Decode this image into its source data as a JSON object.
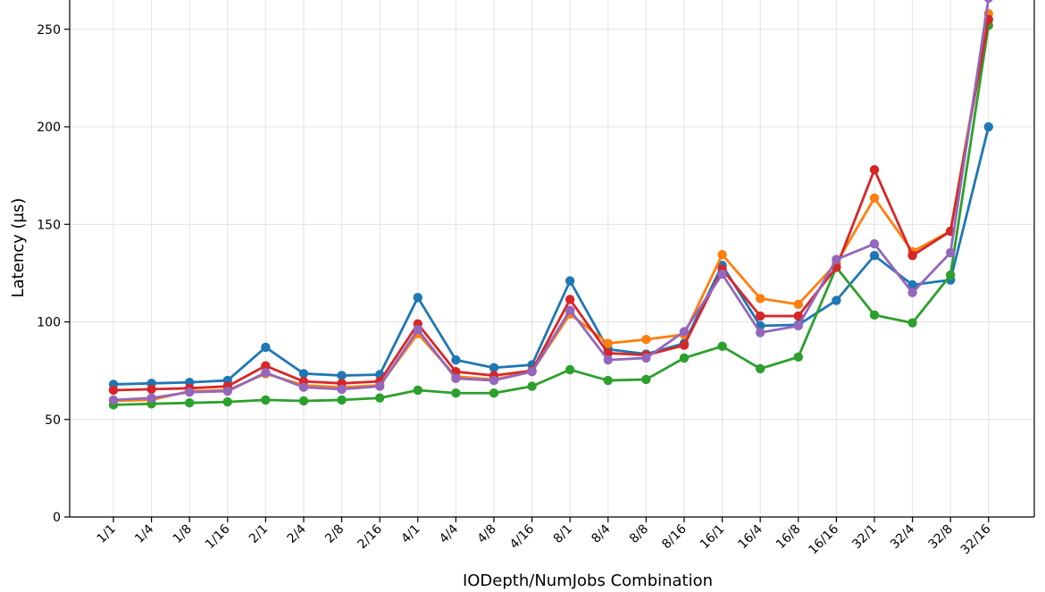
{
  "chart_data": {
    "type": "line",
    "title": "",
    "xlabel": "IODepth/NumJobs Combination",
    "ylabel": "Latency (µs)",
    "categories": [
      "1/1",
      "1/4",
      "1/8",
      "1/16",
      "2/1",
      "2/4",
      "2/8",
      "2/16",
      "4/1",
      "4/4",
      "4/8",
      "4/16",
      "8/1",
      "8/4",
      "8/8",
      "8/16",
      "16/1",
      "16/4",
      "16/8",
      "16/16",
      "32/1",
      "32/4",
      "32/8",
      "32/16"
    ],
    "yticks": [
      0,
      50,
      100,
      150,
      200,
      250
    ],
    "ylim": [
      0,
      265
    ],
    "grid": true,
    "colors": [
      "#1f77b4",
      "#ff7f0e",
      "#2ca02c",
      "#d62728",
      "#9467bd"
    ],
    "series": [
      {
        "values": [
          68,
          68.5,
          69,
          70,
          87,
          73.5,
          72.5,
          73,
          112.5,
          80.5,
          76.5,
          78,
          121,
          86,
          83.5,
          89,
          129,
          98,
          98.5,
          111,
          134,
          119,
          121.5,
          200
        ]
      },
      {
        "values": [
          59.5,
          60,
          64.5,
          65,
          73.5,
          67.5,
          66.5,
          67.5,
          94,
          72,
          70.5,
          74.5,
          104,
          89,
          91,
          93.5,
          134.5,
          112,
          109,
          130,
          163.5,
          136,
          146.5,
          258
        ]
      },
      {
        "values": [
          57.5,
          58,
          58.5,
          59,
          60,
          59.5,
          60,
          61,
          65,
          63.5,
          63.5,
          67,
          75.5,
          70,
          70.5,
          81.5,
          87.5,
          76,
          82,
          128,
          103.5,
          99.5,
          124,
          252
        ]
      },
      {
        "values": [
          65,
          65.5,
          66,
          67,
          77.5,
          69.5,
          68.5,
          69.5,
          99,
          74.5,
          72.5,
          75,
          111.5,
          84,
          83,
          88,
          127,
          103,
          103,
          128,
          178,
          134,
          146.5,
          255
        ]
      },
      {
        "values": [
          60,
          61,
          64,
          64.5,
          74,
          66.5,
          65.5,
          67,
          96,
          71,
          70,
          74.5,
          106,
          80.5,
          81.5,
          95,
          124.5,
          94.5,
          98,
          132,
          140,
          115,
          135.5,
          266
        ]
      }
    ]
  }
}
